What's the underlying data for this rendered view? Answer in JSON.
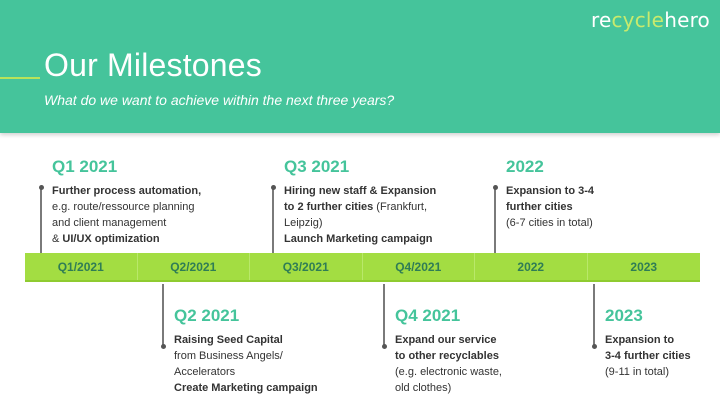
{
  "brand": {
    "logo_part1": "re",
    "logo_part2": "cycle",
    "logo_part3": "hero"
  },
  "header": {
    "title": "Our Milestones",
    "subtitle": "What do we want to achieve within the next three years?"
  },
  "timeline_bar": [
    "Q1/2021",
    "Q2/2021",
    "Q3/2021",
    "Q4/2021",
    "2022",
    "2023"
  ],
  "milestones": {
    "q1": {
      "heading": "Q1 2021",
      "l1": "Further process automation,",
      "l2": "e.g. route/ressource planning",
      "l3": "and client management",
      "l4a": "& ",
      "l4b": "UI/UX optimization"
    },
    "q2": {
      "heading": "Q2 2021",
      "l1": "Raising Seed Capital",
      "l2": "from Business Angels/",
      "l3": "Accelerators",
      "l4": "Create Marketing campaign"
    },
    "q3": {
      "heading": "Q3 2021",
      "l1": "Hiring new staff & Expansion",
      "l2a": "to 2 further cities",
      "l2b": " (Frankfurt,",
      "l3": "Leipzig)",
      "l4": "Launch Marketing campaign"
    },
    "q4": {
      "heading": "Q4 2021",
      "l1": "Expand our service",
      "l2": "to other recyclables",
      "l3": "(e.g. electronic waste,",
      "l4": "old clothes)"
    },
    "y2022": {
      "heading": "2022",
      "l1": "Expansion to 3-4",
      "l2": "further cities",
      "l3": "(6-7 cities in total)"
    },
    "y2023": {
      "heading": "2023",
      "l1": "Expansion to",
      "l2": "3-4 further cities",
      "l3": "(9-11 in total)"
    }
  },
  "colors": {
    "header_bg": "#45c49b",
    "bar_bg": "#a3dd42",
    "heading": "#45c49b",
    "logo_accent": "#c8ea6d"
  }
}
